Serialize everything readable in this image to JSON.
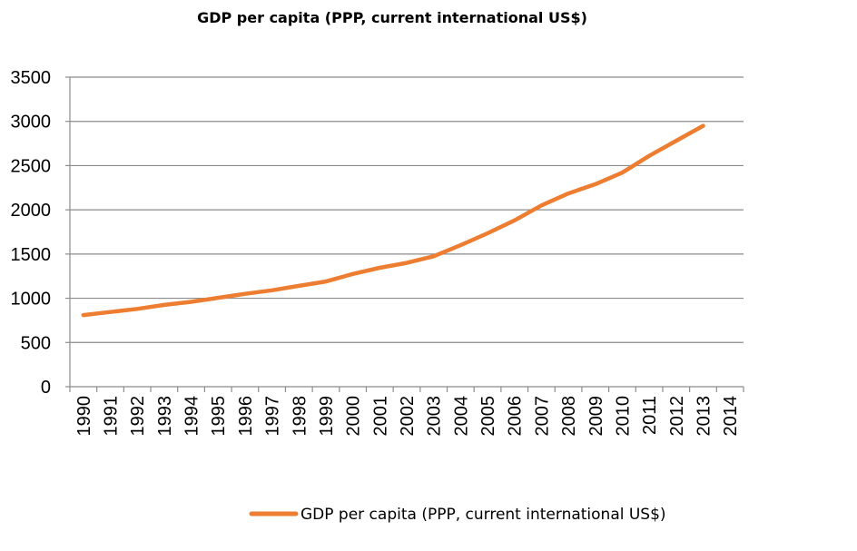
{
  "chart_data": {
    "type": "line",
    "title": "GDP per capita (PPP, current international US$)",
    "xlabel": "",
    "ylabel": "",
    "categories": [
      "1990",
      "1991",
      "1992",
      "1993",
      "1994",
      "1995",
      "1996",
      "1997",
      "1998",
      "1999",
      "2000",
      "2001",
      "2002",
      "2003",
      "2004",
      "2005",
      "2006",
      "2007",
      "2008",
      "2009",
      "2010",
      "2011",
      "2012",
      "2013",
      "2014"
    ],
    "ylim": [
      0,
      3500
    ],
    "yticks": [
      0,
      500,
      1000,
      1500,
      2000,
      2500,
      3000,
      3500
    ],
    "grid": true,
    "legend_position": "bottom",
    "series": [
      {
        "name": "GDP per capita (PPP, current international US$)",
        "color": "#ed7d31",
        "values": [
          810,
          845,
          880,
          925,
          960,
          1005,
          1050,
          1090,
          1140,
          1190,
          1275,
          1345,
          1400,
          1475,
          1600,
          1735,
          1880,
          2050,
          2185,
          2290,
          2420,
          2610,
          2780,
          2950,
          null
        ]
      }
    ]
  }
}
